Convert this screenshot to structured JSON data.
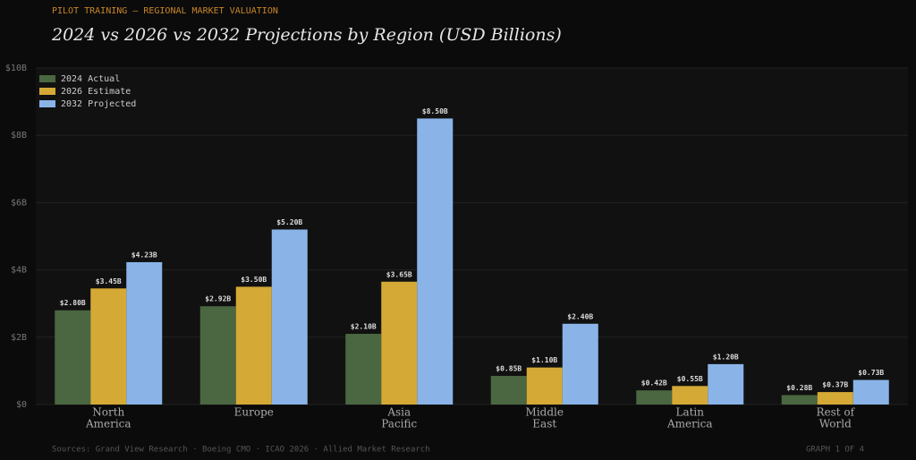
{
  "chart_data": {
    "type": "bar",
    "kicker": "PILOT TRAINING — REGIONAL MARKET VALUATION",
    "title": "2024 vs 2026 vs 2032 Projections by Region  (USD Billions)",
    "categories": [
      [
        "North",
        "America"
      ],
      [
        "Europe"
      ],
      [
        "Asia",
        "Pacific"
      ],
      [
        "Middle",
        "East"
      ],
      [
        "Latin",
        "America"
      ],
      [
        "Rest of",
        "World"
      ]
    ],
    "series": [
      {
        "name": "2024 Actual",
        "color": "#4a6741",
        "values": [
          2.8,
          2.92,
          2.1,
          0.85,
          0.42,
          0.28
        ],
        "value_labels": [
          "$2.80B",
          "$2.92B",
          "$2.10B",
          "$0.85B",
          "$0.42B",
          "$0.28B"
        ]
      },
      {
        "name": "2026 Estimate",
        "color": "#d4a935",
        "values": [
          3.45,
          3.5,
          3.65,
          1.1,
          0.55,
          0.37
        ],
        "value_labels": [
          "$3.45B",
          "$3.50B",
          "$3.65B",
          "$1.10B",
          "$0.55B",
          "$0.37B"
        ]
      },
      {
        "name": "2032 Projected",
        "color": "#8ab4e8",
        "values": [
          4.23,
          5.2,
          8.5,
          2.4,
          1.2,
          0.73
        ],
        "value_labels": [
          "$4.23B",
          "$5.20B",
          "$8.50B",
          "$2.40B",
          "$1.20B",
          "$0.73B"
        ]
      }
    ],
    "ylim": [
      0,
      10
    ],
    "yticks": [
      {
        "value": 0,
        "label": "$0"
      },
      {
        "value": 2,
        "label": "$2B"
      },
      {
        "value": 4,
        "label": "$4B"
      },
      {
        "value": 6,
        "label": "$6B"
      },
      {
        "value": 8,
        "label": "$8B"
      },
      {
        "value": 10,
        "label": "$10B"
      }
    ],
    "grid": true,
    "legend": "upper left",
    "source": "Sources: Grand View Research · Boeing CMO · ICAO 2026 · Allied Market Research",
    "page_label": "GRAPH 1 OF 4"
  }
}
